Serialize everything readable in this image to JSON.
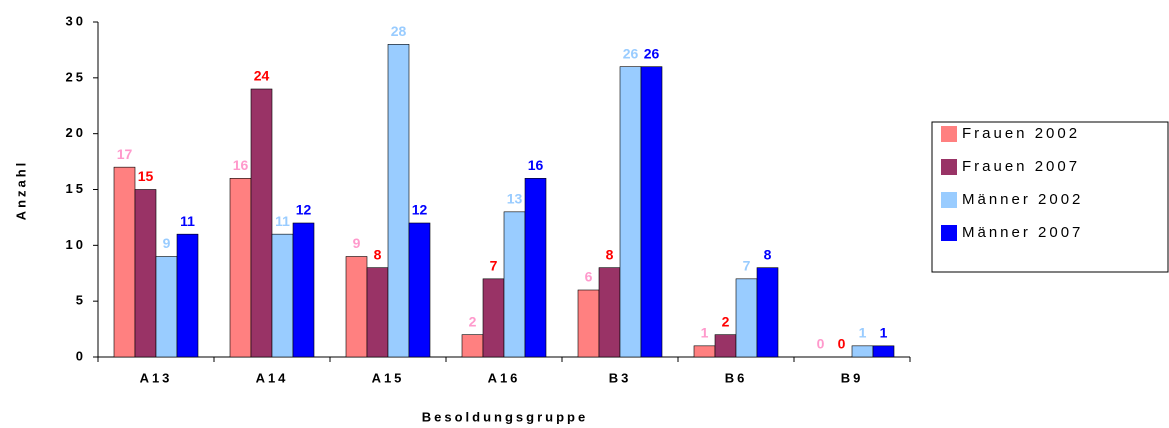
{
  "chart_data": {
    "type": "bar",
    "x_label": "Besoldungsgruppe",
    "y_label": "Anzahl",
    "categories": [
      "A13",
      "A14",
      "A15",
      "A16",
      "B3",
      "B6",
      "B9"
    ],
    "series": [
      {
        "name": "Frauen 2002",
        "color": "#FF8080",
        "label_color": "#FF99CC",
        "values": [
          17,
          16,
          9,
          2,
          6,
          1,
          0
        ]
      },
      {
        "name": "Frauen 2007",
        "color": "#993366",
        "label_color": "#FF0000",
        "values": [
          15,
          24,
          8,
          7,
          8,
          2,
          0
        ]
      },
      {
        "name": "Männer 2002",
        "color": "#99CCFF",
        "label_color": "#99CCFF",
        "values": [
          9,
          11,
          28,
          13,
          26,
          7,
          1
        ]
      },
      {
        "name": "Männer 2007",
        "color": "#0000FF",
        "label_color": "#0000FF",
        "values": [
          11,
          12,
          12,
          16,
          26,
          8,
          1
        ]
      }
    ],
    "ylim": [
      0,
      30
    ],
    "yticks": [
      0,
      5,
      10,
      15,
      20,
      25,
      30
    ],
    "grid": false,
    "legend": "right"
  }
}
